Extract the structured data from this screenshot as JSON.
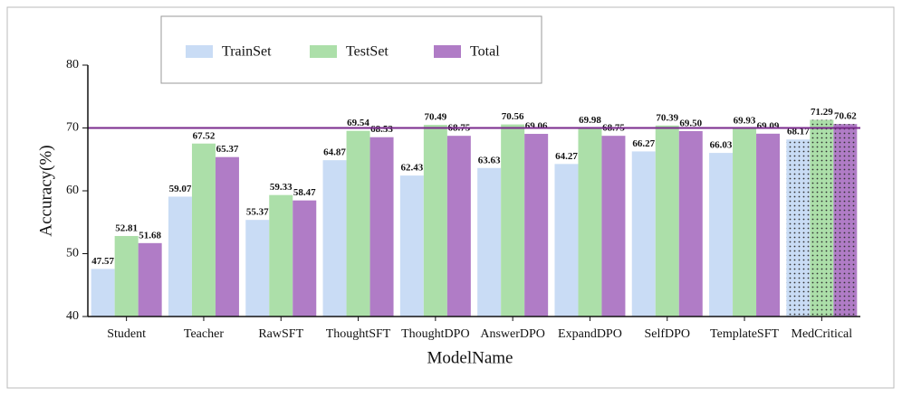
{
  "chart_data": {
    "type": "bar",
    "x_label": "ModelName",
    "y_label": "Accuracy(%)",
    "categories": [
      "Student",
      "Teacher",
      "RawSFT",
      "ThoughtSFT",
      "ThoughtDPO",
      "AnswerDPO",
      "ExpandDPO",
      "SelfDPO",
      "TemplateSFT",
      "MedCritical"
    ],
    "series": [
      {
        "name": "TrainSet",
        "color": "#c9dcf5",
        "values": [
          47.57,
          59.07,
          55.37,
          64.87,
          62.43,
          63.63,
          64.27,
          66.27,
          66.03,
          68.17
        ],
        "value_labels": [
          "47.57",
          "59.07",
          "55.37",
          "64.87",
          "62.43",
          "63.63",
          "64.27",
          "66.27",
          "66.03",
          "68.17"
        ]
      },
      {
        "name": "TestSet",
        "color": "#acdfa9",
        "values": [
          52.81,
          67.52,
          59.33,
          69.54,
          70.49,
          70.56,
          69.98,
          70.39,
          69.93,
          71.29
        ],
        "value_labels": [
          "52.81",
          "67.52",
          "59.33",
          "69.54",
          "70.49",
          "70.56",
          "69.98",
          "70.39",
          "69.93",
          "71.29"
        ]
      },
      {
        "name": "Total",
        "color": "#b07cc6",
        "values": [
          51.68,
          65.37,
          58.47,
          68.53,
          68.75,
          69.06,
          68.75,
          69.5,
          69.09,
          70.62
        ],
        "value_labels": [
          "51.68",
          "65.37",
          "58.47",
          "68.53",
          "68.75",
          "69.06",
          "68.75",
          "69.50",
          "69.09",
          "70.62"
        ]
      }
    ],
    "ylim": [
      40,
      80
    ],
    "yticks": [
      40,
      50,
      60,
      70,
      80
    ],
    "grid": false,
    "reference_line": {
      "value": 70,
      "color": "#7a2a8c"
    },
    "dotted_category": 9,
    "legend": "top-left"
  }
}
